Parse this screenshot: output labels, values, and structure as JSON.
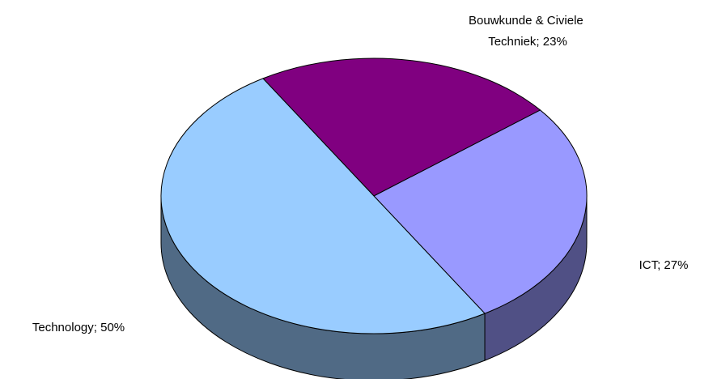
{
  "chart_data": {
    "type": "pie3d",
    "value_labels": [
      "Bouwkunde & Civiele Techniek; 23%",
      "ICT; 27%",
      "Technology; 50%"
    ],
    "values": [
      23,
      27,
      50
    ],
    "colors": [
      "#800080",
      "#9999ff",
      "#99ccff"
    ]
  }
}
